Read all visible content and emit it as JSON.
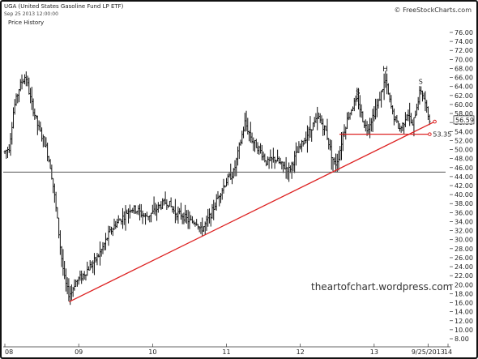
{
  "header": {
    "title": "UGA (United States Gasoline Fund LP ETF)",
    "timestamp": "Sep 25 2013 12:00:00",
    "series_label": "Price History",
    "brand": "© FreeStockCharts.com"
  },
  "watermark": "theartofchart.wordpress.com",
  "chart_data": {
    "type": "ohlc",
    "ylim": [
      8,
      76
    ],
    "y_ticks": [
      "76.00",
      "74.00",
      "72.00",
      "70.00",
      "68.00",
      "66.00",
      "64.00",
      "62.00",
      "60.00",
      "58.00",
      "56.00",
      "54.00",
      "52.00",
      "50.00",
      "48.00",
      "46.00",
      "44.00",
      "42.00",
      "40.00",
      "38.00",
      "36.00",
      "34.00",
      "32.00",
      "30.00",
      "28.00",
      "26.00",
      "24.00",
      "22.00",
      "20.00",
      "18.00",
      "16.00",
      "14.00",
      "12.00",
      "10.00",
      "8.00"
    ],
    "x_ticks": [
      "08",
      "09",
      "10",
      "11",
      "12",
      "13",
      "9/25/2013",
      "14"
    ],
    "x_tick_years": [
      2008,
      2009,
      2010,
      2011,
      2012,
      2013,
      2013.73,
      2014
    ],
    "last_price_label": "56.59",
    "neckline_label": "53.35",
    "annotations": [
      "S",
      "H",
      "S"
    ],
    "price_path": [
      [
        2008.0,
        49.5
      ],
      [
        2008.06,
        50.5
      ],
      [
        2008.12,
        59.0
      ],
      [
        2008.2,
        64.0
      ],
      [
        2008.28,
        66.5
      ],
      [
        2008.35,
        61.0
      ],
      [
        2008.45,
        55.0
      ],
      [
        2008.55,
        51.0
      ],
      [
        2008.62,
        46.0
      ],
      [
        2008.67,
        40.0
      ],
      [
        2008.72,
        33.0
      ],
      [
        2008.76,
        27.0
      ],
      [
        2008.81,
        21.0
      ],
      [
        2008.86,
        18.0
      ],
      [
        2008.9,
        18.2
      ],
      [
        2008.95,
        20.5
      ],
      [
        2009.05,
        22.0
      ],
      [
        2009.15,
        24.0
      ],
      [
        2009.25,
        26.0
      ],
      [
        2009.32,
        28.0
      ],
      [
        2009.4,
        31.0
      ],
      [
        2009.5,
        33.5
      ],
      [
        2009.6,
        35.0
      ],
      [
        2009.7,
        37.0
      ],
      [
        2009.8,
        36.5
      ],
      [
        2009.9,
        35.0
      ],
      [
        2010.0,
        36.0
      ],
      [
        2010.1,
        37.5
      ],
      [
        2010.2,
        38.5
      ],
      [
        2010.3,
        36.0
      ],
      [
        2010.4,
        35.5
      ],
      [
        2010.5,
        34.0
      ],
      [
        2010.6,
        34.0
      ],
      [
        2010.65,
        32.0
      ],
      [
        2010.72,
        33.5
      ],
      [
        2010.8,
        36.0
      ],
      [
        2010.9,
        40.0
      ],
      [
        2011.0,
        43.0
      ],
      [
        2011.1,
        45.0
      ],
      [
        2011.18,
        51.0
      ],
      [
        2011.25,
        56.0
      ],
      [
        2011.35,
        52.0
      ],
      [
        2011.45,
        50.0
      ],
      [
        2011.55,
        47.0
      ],
      [
        2011.65,
        48.0
      ],
      [
        2011.75,
        46.5
      ],
      [
        2011.85,
        45.5
      ],
      [
        2011.95,
        49.0
      ],
      [
        2012.05,
        52.0
      ],
      [
        2012.15,
        55.0
      ],
      [
        2012.25,
        57.0
      ],
      [
        2012.35,
        54.0
      ],
      [
        2012.42,
        49.0
      ],
      [
        2012.47,
        46.5
      ],
      [
        2012.52,
        48.5
      ],
      [
        2012.58,
        53.5
      ],
      [
        2012.65,
        57.5
      ],
      [
        2012.72,
        60.0
      ],
      [
        2012.78,
        61.0
      ],
      [
        2012.84,
        57.0
      ],
      [
        2012.9,
        54.5
      ],
      [
        2012.97,
        57.0
      ],
      [
        2013.05,
        60.0
      ],
      [
        2013.12,
        64.0
      ],
      [
        2013.15,
        65.5
      ],
      [
        2013.2,
        61.5
      ],
      [
        2013.25,
        58.0
      ],
      [
        2013.3,
        56.0
      ],
      [
        2013.35,
        54.5
      ],
      [
        2013.4,
        56.0
      ],
      [
        2013.45,
        58.5
      ],
      [
        2013.52,
        55.0
      ],
      [
        2013.58,
        60.0
      ],
      [
        2013.63,
        63.5
      ],
      [
        2013.68,
        61.0
      ],
      [
        2013.72,
        58.0
      ],
      [
        2013.76,
        56.6
      ]
    ],
    "support_line": {
      "y": 45
    },
    "trendline": {
      "from": [
        2008.87,
        16.2
      ],
      "to": [
        2013.82,
        56.2
      ]
    },
    "neckline": {
      "from": [
        2012.53,
        53.4
      ],
      "to": [
        2013.73,
        53.4
      ]
    }
  }
}
